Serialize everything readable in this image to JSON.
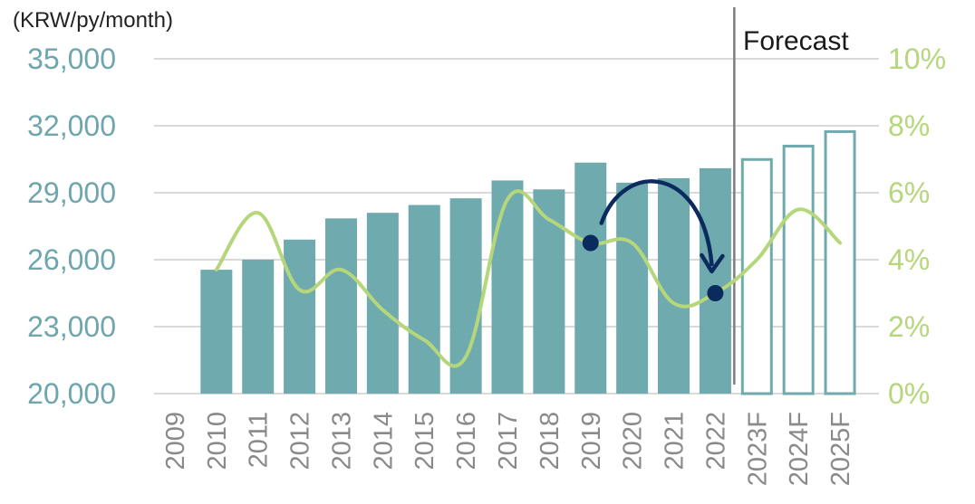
{
  "chart_data": {
    "type": "bar",
    "unit_label": "(KRW/py/month)",
    "categories": [
      "2009",
      "2010",
      "2011",
      "2012",
      "2013",
      "2014",
      "2015",
      "2016",
      "2017",
      "2018",
      "2019",
      "2020",
      "2021",
      "2022",
      "2023F",
      "2024F",
      "2025F"
    ],
    "series": [
      {
        "type": "bar",
        "axis": "left",
        "values": [
          null,
          25550,
          26000,
          26900,
          27850,
          28100,
          28450,
          28750,
          29550,
          29150,
          30350,
          29450,
          29650,
          30100,
          30550,
          31150,
          31800
        ],
        "forecast_from": "2023F"
      },
      {
        "type": "line",
        "axis": "right",
        "values": [
          null,
          3.7,
          5.4,
          3.1,
          3.7,
          2.5,
          1.6,
          1.1,
          5.8,
          5.2,
          4.5,
          4.5,
          2.7,
          3.0,
          4.0,
          5.5,
          4.5
        ]
      }
    ],
    "y_left": {
      "min": 20000,
      "max": 35000,
      "ticks": [
        "20,000",
        "23,000",
        "26,000",
        "29,000",
        "32,000",
        "35,000"
      ]
    },
    "y_right": {
      "min": 0,
      "max": 10,
      "ticks": [
        "0%",
        "2%",
        "4%",
        "6%",
        "8%",
        "10%"
      ]
    },
    "forecast_label": "Forecast",
    "arrow": {
      "from": "2019",
      "to": "2022"
    },
    "grid": true,
    "colors": {
      "bar_fill": "#6eaaae",
      "bar_outline": "#6eaaae",
      "line": "#b5d67a",
      "left_axis_text": "#6fa6ae",
      "right_axis_text": "#b5d67a",
      "grid": "#d9d9d9",
      "divider": "#7f7f7f",
      "arrow": "#0b2a5e"
    }
  }
}
